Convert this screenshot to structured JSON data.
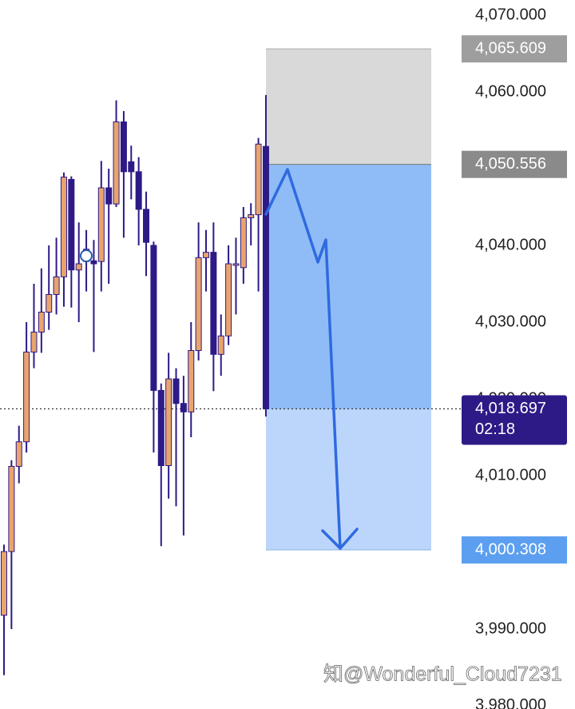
{
  "chart_data": {
    "type": "candlestick",
    "open": [
      3991.8,
      4000.1,
      4011.2,
      4014.4,
      4026.1,
      4028.7,
      4031.3,
      4033.6,
      4035.9,
      4048.6,
      4036.8,
      4039.5,
      4038.0,
      4037.9,
      4047.5,
      4045.4,
      4056.1,
      4050.9,
      4049.6,
      4044.7,
      4040.0,
      4021.1,
      4011.3,
      4022.6,
      4019.4,
      4018.3,
      4026.3,
      4038.4,
      4039.1,
      4025.8,
      4028.2,
      4037.4,
      4037.1,
      4043.6,
      4044.0,
      4052.9
    ],
    "high": [
      4001.0,
      4012.0,
      4016.5,
      4030.0,
      4035.0,
      4037.0,
      4040.0,
      4041.0,
      4049.5,
      4049.0,
      4043.0,
      4042.0,
      4040.7,
      4051.0,
      4050.0,
      4058.9,
      4057.5,
      4053.0,
      4051.5,
      4047.0,
      4040.5,
      4022.0,
      4026.0,
      4024.0,
      4023.0,
      4030.0,
      4043.0,
      4042.0,
      4043.0,
      4031.0,
      4040.0,
      4041.0,
      4045.0,
      4045.5,
      4054.0,
      4059.6
    ],
    "low": [
      3984.0,
      3990.0,
      4009.0,
      4013.0,
      4024.0,
      4026.0,
      4029.0,
      4031.0,
      4032.0,
      4031.9,
      4030.0,
      4034.0,
      4026.1,
      4034.0,
      4035.0,
      4045.0,
      4041.0,
      4046.0,
      4040.0,
      4036.0,
      4013.0,
      4000.8,
      4007.0,
      4006.0,
      4002.2,
      4015.0,
      4025.0,
      4034.0,
      4021.0,
      4023.0,
      4027.0,
      4031.0,
      4035.0,
      4040.0,
      4034.0,
      4017.7
    ],
    "close": [
      4000.1,
      4011.2,
      4014.4,
      4026.1,
      4028.7,
      4031.3,
      4033.6,
      4035.9,
      4048.9,
      4036.8,
      4037.6,
      4037.9,
      4037.6,
      4047.5,
      4045.4,
      4056.1,
      4049.6,
      4049.6,
      4044.7,
      4040.4,
      4021.1,
      4011.3,
      4022.6,
      4019.4,
      4018.3,
      4026.3,
      4038.4,
      4039.1,
      4025.8,
      4028.2,
      4037.6,
      4037.6,
      4043.6,
      4044.0,
      4053.2,
      4018.7
    ],
    "up_color": "#e9a46e",
    "down_color": "#2e1a87",
    "ylim": [
      3979.58,
      4071.98
    ],
    "yticks": [
      {
        "value": 4070,
        "label": "4,070.000"
      },
      {
        "value": 4060,
        "label": "4,060.000"
      },
      {
        "value": 4050,
        "label": "4,050.000"
      },
      {
        "value": 4040,
        "label": "4,040.000"
      },
      {
        "value": 4030,
        "label": "4,030.000"
      },
      {
        "value": 4020,
        "label": "4,020.000"
      },
      {
        "value": 4010,
        "label": "4,010.000"
      },
      {
        "value": 4000,
        "label": "4,000.000"
      },
      {
        "value": 3990,
        "label": "3,990.000"
      },
      {
        "value": 3980,
        "label": "3,980.000"
      }
    ],
    "position": {
      "stop": {
        "value": 4065.609,
        "label": "4,065.609"
      },
      "entry": {
        "value": 4050.556,
        "label": "4,050.556"
      },
      "target": {
        "value": 4000.308,
        "label": "4,000.308"
      }
    },
    "current_price": {
      "value": 4018.697,
      "label": "4,018.697",
      "countdown": "02:18"
    },
    "watermark": "知@Wonderful_Cloud7231"
  }
}
